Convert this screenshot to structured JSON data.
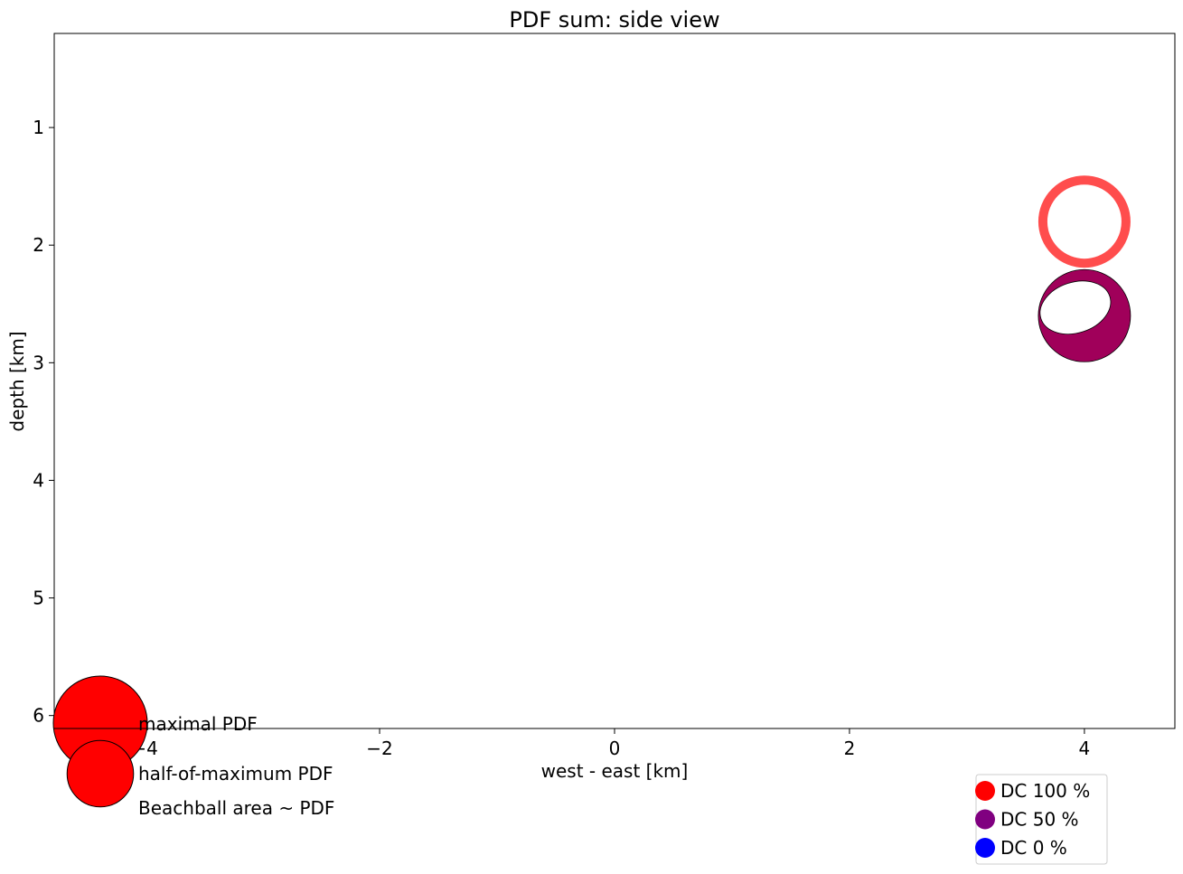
{
  "chart_data": {
    "type": "scatter",
    "title": "PDF sum: side view",
    "xlabel": "west - east [km]",
    "ylabel": "depth [km]",
    "xlim": [
      -4.77,
      4.77
    ],
    "ylim": [
      6.11,
      0.2
    ],
    "x_inverted": false,
    "y_inverted": true,
    "xticks": [
      -4,
      -2,
      0,
      2,
      4
    ],
    "xtick_labels": [
      "−4",
      "−2",
      "0",
      "2",
      "4"
    ],
    "yticks": [
      1,
      2,
      3,
      4,
      5,
      6
    ],
    "ytick_labels": [
      "1",
      "2",
      "3",
      "4",
      "5",
      "6"
    ],
    "grid": false,
    "points": [
      {
        "x": 4.0,
        "depth": 1.8,
        "color": "#ff4d4d",
        "kind": "ring",
        "dc_percent": 100
      },
      {
        "x": 4.0,
        "depth": 2.6,
        "color": "#a0005a",
        "kind": "beachball",
        "dc_percent": 60
      }
    ],
    "size_legend": {
      "entries": [
        {
          "label": "maximal PDF",
          "relative_area": 1.0,
          "color": "#ff0000"
        },
        {
          "label": "half-of-maximum PDF",
          "relative_area": 0.5,
          "color": "#ff0000"
        }
      ],
      "note": "Beachball area ~ PDF"
    },
    "color_legend": {
      "placement": "bottom-right",
      "entries": [
        {
          "label": "DC 100 %",
          "color": "#ff0000"
        },
        {
          "label": "DC 50 %",
          "color": "#800080"
        },
        {
          "label": "DC 0 %",
          "color": "#0000ff"
        }
      ]
    }
  }
}
